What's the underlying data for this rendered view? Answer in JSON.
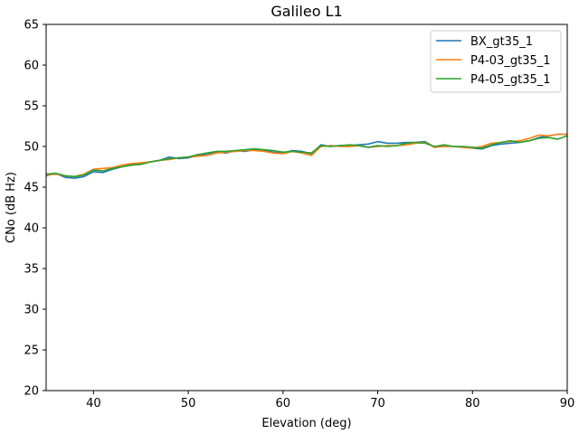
{
  "chart_data": {
    "type": "line",
    "title": "Galileo L1",
    "xlabel": "Elevation (deg)",
    "ylabel": "CNo (dB Hz)",
    "xlim": [
      35,
      90
    ],
    "ylim": [
      20,
      65
    ],
    "xticks": [
      40,
      50,
      60,
      70,
      80,
      90
    ],
    "yticks": [
      20,
      25,
      30,
      35,
      40,
      45,
      50,
      55,
      60,
      65
    ],
    "grid": false,
    "legend_position": "top-right",
    "x": [
      35,
      36,
      37,
      38,
      39,
      40,
      41,
      42,
      43,
      44,
      45,
      46,
      47,
      48,
      49,
      50,
      51,
      52,
      53,
      54,
      55,
      56,
      57,
      58,
      59,
      60,
      61,
      62,
      63,
      64,
      65,
      66,
      67,
      68,
      69,
      70,
      71,
      72,
      73,
      74,
      75,
      76,
      77,
      78,
      79,
      80,
      81,
      82,
      83,
      84,
      85,
      86,
      87,
      88,
      89,
      90
    ],
    "series": [
      {
        "name": "BX_gt35_1",
        "color": "#1f77b4",
        "values": [
          46.4,
          46.7,
          46.2,
          46.1,
          46.3,
          46.9,
          46.8,
          47.2,
          47.5,
          47.8,
          47.9,
          48.1,
          48.3,
          48.7,
          48.5,
          48.6,
          48.9,
          49.1,
          49.3,
          49.2,
          49.5,
          49.4,
          49.6,
          49.5,
          49.3,
          49.2,
          49.5,
          49.4,
          49.1,
          50.2,
          50.0,
          50.1,
          50.1,
          50.2,
          50.3,
          50.6,
          50.4,
          50.4,
          50.5,
          50.5,
          50.6,
          49.9,
          50.1,
          50.0,
          49.9,
          49.8,
          49.7,
          50.1,
          50.3,
          50.4,
          50.5,
          50.7,
          51.1,
          51.3,
          51.5,
          51.5
        ]
      },
      {
        "name": "P4-03_gt35_1",
        "color": "#ff7f0e",
        "values": [
          46.5,
          46.6,
          46.4,
          46.3,
          46.6,
          47.2,
          47.3,
          47.4,
          47.7,
          47.9,
          48.0,
          48.1,
          48.3,
          48.4,
          48.6,
          48.7,
          48.8,
          48.9,
          49.2,
          49.3,
          49.4,
          49.5,
          49.5,
          49.4,
          49.2,
          49.1,
          49.4,
          49.2,
          48.9,
          50.0,
          50.1,
          50.0,
          50.0,
          50.1,
          49.9,
          50.0,
          50.1,
          50.1,
          50.2,
          50.4,
          50.5,
          49.9,
          50.0,
          50.0,
          49.9,
          49.8,
          50.0,
          50.4,
          50.5,
          50.6,
          50.7,
          51.0,
          51.4,
          51.3,
          51.5,
          51.5
        ]
      },
      {
        "name": "P4-05_gt35_1",
        "color": "#2ca02c",
        "values": [
          46.6,
          46.7,
          46.4,
          46.3,
          46.5,
          47.1,
          47.0,
          47.3,
          47.5,
          47.7,
          47.8,
          48.1,
          48.3,
          48.5,
          48.6,
          48.7,
          49.0,
          49.2,
          49.4,
          49.4,
          49.5,
          49.6,
          49.7,
          49.6,
          49.5,
          49.3,
          49.4,
          49.3,
          49.2,
          50.1,
          50.0,
          50.1,
          50.2,
          50.1,
          49.9,
          50.1,
          50.0,
          50.1,
          50.4,
          50.5,
          50.4,
          50.0,
          50.2,
          50.0,
          50.0,
          49.9,
          49.8,
          50.2,
          50.5,
          50.7,
          50.5,
          50.7,
          51.0,
          51.1,
          50.9,
          51.3
        ]
      }
    ]
  }
}
